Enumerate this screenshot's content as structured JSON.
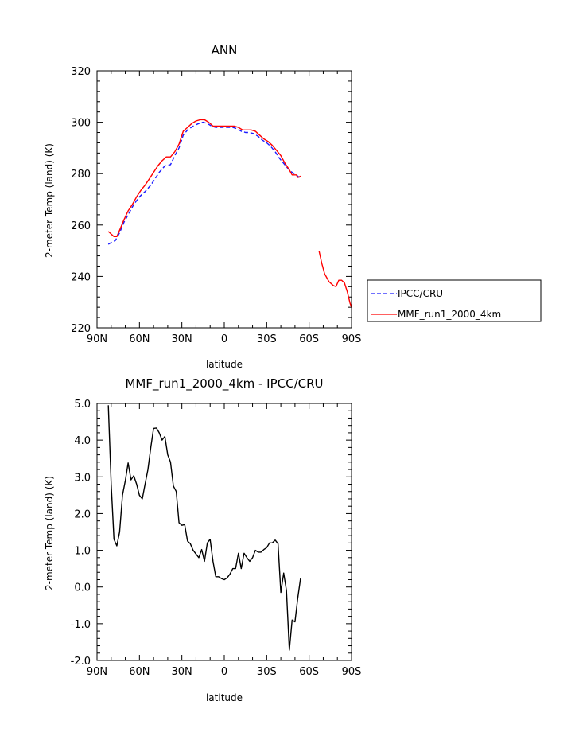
{
  "chart_data": [
    {
      "type": "line",
      "title": "ANN",
      "xlabel": "latitude",
      "ylabel": "2-meter Temp (land) (K)",
      "xlim": [
        90,
        -90
      ],
      "ylim": [
        220,
        320
      ],
      "x_ticks": [
        90,
        60,
        30,
        0,
        -30,
        -60,
        -90
      ],
      "x_tick_labels": [
        "90N",
        "60N",
        "30N",
        "0",
        "30S",
        "60S",
        "90S"
      ],
      "y_ticks": [
        220,
        240,
        260,
        280,
        300,
        320
      ],
      "y_tick_labels": [
        "220",
        "240",
        "260",
        "280",
        "300",
        "320"
      ],
      "legend_position": "right",
      "series": [
        {
          "name": "IPCC/CRU",
          "color": "#1a1aff",
          "dash": "dashed",
          "segments": [
            [
              [
                82,
                252.5
              ],
              [
                79,
                253.5
              ],
              [
                77,
                254
              ],
              [
                74,
                257
              ],
              [
                71,
                261
              ],
              [
                67,
                265
              ],
              [
                64,
                268
              ],
              [
                60,
                271
              ],
              [
                56,
                273
              ],
              [
                52,
                275.5
              ],
              [
                49,
                278
              ],
              [
                46,
                280.5
              ],
              [
                42,
                283
              ],
              [
                38,
                283.5
              ],
              [
                35,
                287
              ],
              [
                32,
                290
              ],
              [
                29,
                295
              ],
              [
                26,
                297
              ],
              [
                22,
                298.5
              ],
              [
                18,
                299.5
              ],
              [
                15,
                300
              ],
              [
                12,
                299.5
              ],
              [
                9,
                298.5
              ],
              [
                6,
                298
              ],
              [
                3,
                298
              ],
              [
                0,
                298
              ],
              [
                -3,
                298
              ],
              [
                -6,
                298
              ],
              [
                -9,
                297.5
              ],
              [
                -12,
                296.5
              ],
              [
                -15,
                296
              ],
              [
                -18,
                296
              ],
              [
                -21,
                295.5
              ],
              [
                -24,
                294.5
              ],
              [
                -27,
                293
              ],
              [
                -30,
                292
              ],
              [
                -33,
                290.5
              ],
              [
                -36,
                288.5
              ],
              [
                -39,
                286
              ],
              [
                -42,
                284
              ],
              [
                -45,
                282
              ],
              [
                -48,
                280.5
              ],
              [
                -51,
                279.5
              ],
              [
                -54,
                278
              ]
            ]
          ]
        },
        {
          "name": "MMF_run1_2000_4km",
          "color": "#ff0000",
          "dash": "solid",
          "segments": [
            [
              [
                82,
                257.5
              ],
              [
                80,
                256.5
              ],
              [
                78,
                255.5
              ],
              [
                76,
                255.5
              ],
              [
                74,
                258
              ],
              [
                71,
                262
              ],
              [
                68,
                265.5
              ],
              [
                65,
                268
              ],
              [
                62,
                271
              ],
              [
                59,
                273.5
              ],
              [
                56,
                275.5
              ],
              [
                53,
                278
              ],
              [
                50,
                280.5
              ],
              [
                47,
                283
              ],
              [
                44,
                285
              ],
              [
                41,
                286.5
              ],
              [
                38,
                286.5
              ],
              [
                35,
                288.5
              ],
              [
                32,
                291.5
              ],
              [
                29,
                296.5
              ],
              [
                26,
                298
              ],
              [
                23,
                299.5
              ],
              [
                20,
                300.5
              ],
              [
                17,
                301
              ],
              [
                14,
                301
              ],
              [
                11,
                300
              ],
              [
                8,
                298.5
              ],
              [
                5,
                298.5
              ],
              [
                2,
                298.5
              ],
              [
                -1,
                298.5
              ],
              [
                -4,
                298.5
              ],
              [
                -7,
                298.5
              ],
              [
                -10,
                298
              ],
              [
                -13,
                297
              ],
              [
                -16,
                297
              ],
              [
                -19,
                297
              ],
              [
                -22,
                296.5
              ],
              [
                -25,
                295
              ],
              [
                -28,
                293.5
              ],
              [
                -31,
                292.5
              ],
              [
                -34,
                291
              ],
              [
                -37,
                289
              ],
              [
                -40,
                287
              ],
              [
                -43,
                284
              ],
              [
                -46,
                281.5
              ],
              [
                -48,
                279.5
              ],
              [
                -51,
                279.5
              ],
              [
                -52,
                278.5
              ],
              [
                -54,
                279
              ]
            ],
            [
              [
                -67,
                250
              ],
              [
                -69,
                245
              ],
              [
                -71,
                241
              ],
              [
                -74,
                238
              ],
              [
                -77,
                236.5
              ],
              [
                -79,
                236
              ],
              [
                -81,
                238.5
              ],
              [
                -83,
                238.5
              ],
              [
                -85,
                237.5
              ],
              [
                -87,
                234
              ],
              [
                -89,
                229.5
              ],
              [
                -90,
                228
              ]
            ]
          ]
        }
      ]
    },
    {
      "type": "line",
      "title": "MMF_run1_2000_4km - IPCC/CRU",
      "xlabel": "latitude",
      "ylabel": "2-meter Temp (land) (K)",
      "xlim": [
        90,
        -90
      ],
      "ylim": [
        -2.0,
        5.0
      ],
      "x_ticks": [
        90,
        60,
        30,
        0,
        -30,
        -60,
        -90
      ],
      "x_tick_labels": [
        "90N",
        "60N",
        "30N",
        "0",
        "30S",
        "60S",
        "90S"
      ],
      "y_ticks": [
        -2,
        -1,
        0,
        1,
        2,
        3,
        4,
        5
      ],
      "y_tick_labels": [
        "-2.0",
        "-1.0",
        "0.0",
        "1.0",
        "2.0",
        "3.0",
        "4.0",
        "5.0"
      ],
      "series": [
        {
          "color": "#000000",
          "dash": "solid",
          "segments": [
            [
              [
                82,
                4.95
              ],
              [
                80,
                2.8
              ],
              [
                78,
                1.3
              ],
              [
                76,
                1.12
              ],
              [
                74,
                1.5
              ],
              [
                72,
                2.5
              ],
              [
                70,
                2.9
              ],
              [
                68,
                3.38
              ],
              [
                66,
                2.92
              ],
              [
                64,
                3.03
              ],
              [
                62,
                2.8
              ],
              [
                60,
                2.5
              ],
              [
                58,
                2.4
              ],
              [
                56,
                2.8
              ],
              [
                54,
                3.2
              ],
              [
                52,
                3.8
              ],
              [
                50,
                4.32
              ],
              [
                48,
                4.33
              ],
              [
                46,
                4.2
              ],
              [
                44,
                4.0
              ],
              [
                42,
                4.1
              ],
              [
                40,
                3.6
              ],
              [
                38,
                3.4
              ],
              [
                36,
                2.75
              ],
              [
                34,
                2.6
              ],
              [
                32,
                1.75
              ],
              [
                30,
                1.68
              ],
              [
                28,
                1.7
              ],
              [
                26,
                1.25
              ],
              [
                24,
                1.18
              ],
              [
                22,
                1.0
              ],
              [
                20,
                0.9
              ],
              [
                18,
                0.8
              ],
              [
                16,
                1.02
              ],
              [
                14,
                0.7
              ],
              [
                12,
                1.2
              ],
              [
                10,
                1.3
              ],
              [
                8,
                0.7
              ],
              [
                6,
                0.28
              ],
              [
                4,
                0.28
              ],
              [
                2,
                0.23
              ],
              [
                0,
                0.2
              ],
              [
                -2,
                0.25
              ],
              [
                -4,
                0.35
              ],
              [
                -6,
                0.5
              ],
              [
                -8,
                0.5
              ],
              [
                -10,
                0.92
              ],
              [
                -12,
                0.5
              ],
              [
                -14,
                0.92
              ],
              [
                -16,
                0.8
              ],
              [
                -18,
                0.7
              ],
              [
                -20,
                0.8
              ],
              [
                -22,
                1.0
              ],
              [
                -24,
                0.95
              ],
              [
                -26,
                0.95
              ],
              [
                -28,
                1.02
              ],
              [
                -30,
                1.07
              ],
              [
                -32,
                1.2
              ],
              [
                -34,
                1.2
              ],
              [
                -36,
                1.28
              ],
              [
                -38,
                1.18
              ],
              [
                -40,
                -0.15
              ],
              [
                -42,
                0.38
              ],
              [
                -44,
                -0.1
              ],
              [
                -46,
                -1.72
              ],
              [
                -48,
                -0.9
              ],
              [
                -50,
                -0.95
              ],
              [
                -52,
                -0.3
              ],
              [
                -54,
                0.25
              ]
            ]
          ]
        }
      ]
    }
  ]
}
